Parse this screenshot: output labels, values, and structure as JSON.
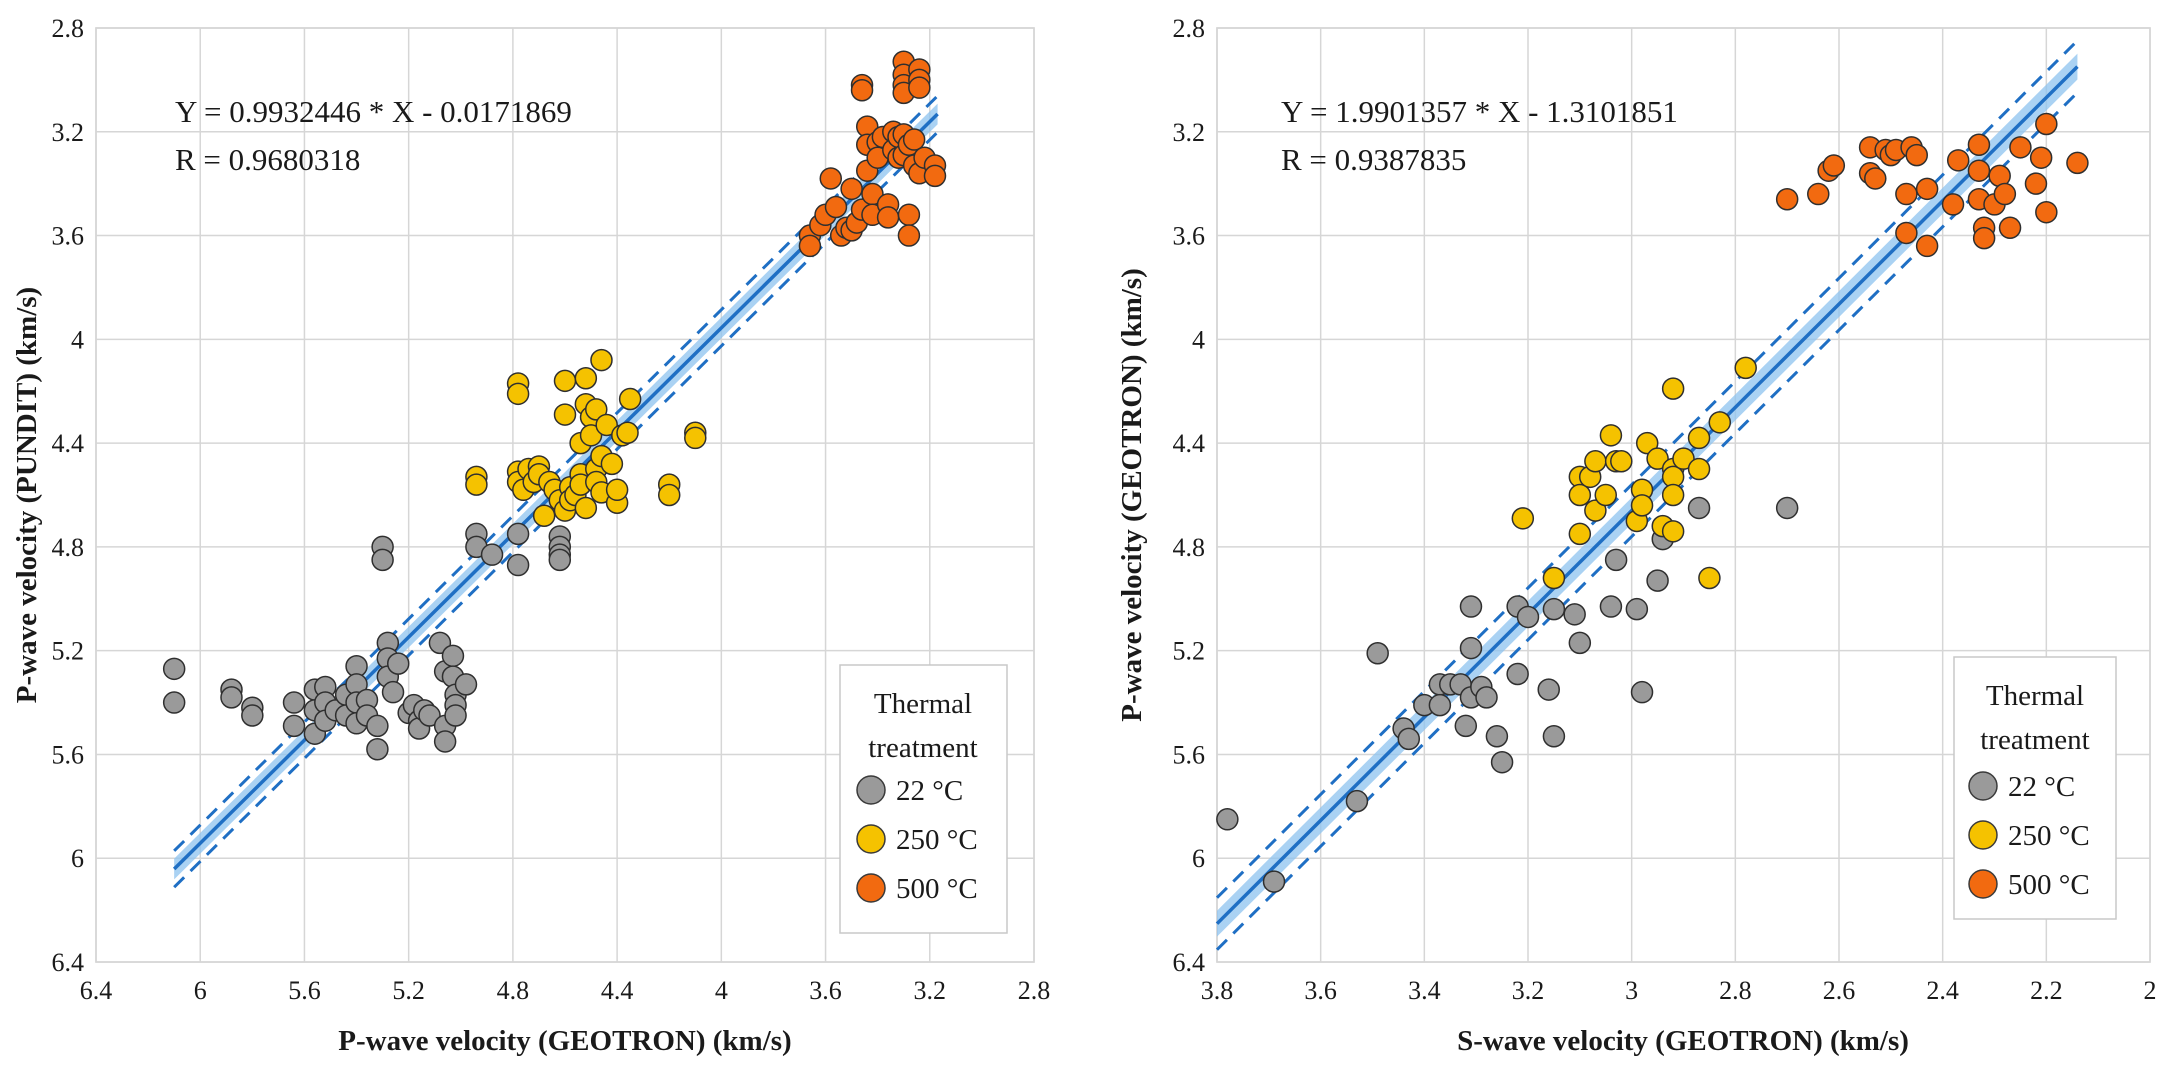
{
  "chart_data": [
    {
      "type": "scatter",
      "title": "",
      "xlabel": "P-wave velocity (GEOTRON) (km/s)",
      "ylabel": "P-wave velocity (PUNDIT) (km/s)",
      "xlim": [
        6.4,
        2.8
      ],
      "ylim": [
        2.8,
        6.4
      ],
      "x_ticks": [
        "6.4",
        "6",
        "5.6",
        "5.2",
        "4.8",
        "4.4",
        "4",
        "3.6",
        "3.2",
        "2.8"
      ],
      "y_ticks": [
        "2.8",
        "3.2",
        "3.6",
        "4",
        "4.4",
        "4.8",
        "5.2",
        "5.6",
        "6",
        "6.4"
      ],
      "equation": "Y = 0.9932446 * X - 0.0171869",
      "r_text": "R = 0.9680318",
      "fit": {
        "slope": 0.9932446,
        "intercept": -0.0171869,
        "x_range": [
          6.1,
          3.17
        ],
        "band": 0.04,
        "dash_offset": 0.07
      },
      "legend": {
        "title_lines": [
          "Thermal",
          "treatment"
        ],
        "position": "bottom-right"
      },
      "series": [
        {
          "name": "22 °C",
          "color": "#9a9a9a",
          "points": [
            [
              6.1,
              5.27
            ],
            [
              6.1,
              5.4
            ],
            [
              5.88,
              5.35
            ],
            [
              5.88,
              5.38
            ],
            [
              5.8,
              5.42
            ],
            [
              5.8,
              5.45
            ],
            [
              5.64,
              5.4
            ],
            [
              5.64,
              5.49
            ],
            [
              5.56,
              5.35
            ],
            [
              5.56,
              5.43
            ],
            [
              5.56,
              5.52
            ],
            [
              5.52,
              5.34
            ],
            [
              5.52,
              5.4
            ],
            [
              5.52,
              5.47
            ],
            [
              5.48,
              5.43
            ],
            [
              5.44,
              5.37
            ],
            [
              5.44,
              5.45
            ],
            [
              5.4,
              5.26
            ],
            [
              5.4,
              5.33
            ],
            [
              5.4,
              5.4
            ],
            [
              5.4,
              5.48
            ],
            [
              5.36,
              5.39
            ],
            [
              5.36,
              5.45
            ],
            [
              5.32,
              5.49
            ],
            [
              5.32,
              5.58
            ],
            [
              5.3,
              4.8
            ],
            [
              5.3,
              4.85
            ],
            [
              5.28,
              5.17
            ],
            [
              5.28,
              5.23
            ],
            [
              5.28,
              5.3
            ],
            [
              5.26,
              5.36
            ],
            [
              5.24,
              5.25
            ],
            [
              5.2,
              5.44
            ],
            [
              5.18,
              5.41
            ],
            [
              5.16,
              5.47
            ],
            [
              5.16,
              5.5
            ],
            [
              5.14,
              5.43
            ],
            [
              5.12,
              5.45
            ],
            [
              5.08,
              5.17
            ],
            [
              5.06,
              5.28
            ],
            [
              5.06,
              5.49
            ],
            [
              5.06,
              5.55
            ],
            [
              5.03,
              5.22
            ],
            [
              5.03,
              5.3
            ],
            [
              5.02,
              5.37
            ],
            [
              5.02,
              5.41
            ],
            [
              5.02,
              5.45
            ],
            [
              4.98,
              5.33
            ],
            [
              4.94,
              4.75
            ],
            [
              4.94,
              4.8
            ],
            [
              4.88,
              4.83
            ],
            [
              4.78,
              4.75
            ],
            [
              4.78,
              4.87
            ],
            [
              4.62,
              4.76
            ],
            [
              4.62,
              4.8
            ],
            [
              4.62,
              4.83
            ],
            [
              4.62,
              4.85
            ]
          ]
        },
        {
          "name": "250 °C",
          "color": "#f5c200",
          "points": [
            [
              4.94,
              4.53
            ],
            [
              4.94,
              4.56
            ],
            [
              4.78,
              4.17
            ],
            [
              4.78,
              4.21
            ],
            [
              4.78,
              4.51
            ],
            [
              4.78,
              4.55
            ],
            [
              4.76,
              4.58
            ],
            [
              4.74,
              4.5
            ],
            [
              4.72,
              4.55
            ],
            [
              4.7,
              4.49
            ],
            [
              4.7,
              4.52
            ],
            [
              4.68,
              4.68
            ],
            [
              4.66,
              4.55
            ],
            [
              4.64,
              4.58
            ],
            [
              4.62,
              4.62
            ],
            [
              4.6,
              4.66
            ],
            [
              4.6,
              4.16
            ],
            [
              4.6,
              4.29
            ],
            [
              4.58,
              4.57
            ],
            [
              4.58,
              4.62
            ],
            [
              4.56,
              4.6
            ],
            [
              4.54,
              4.4
            ],
            [
              4.54,
              4.52
            ],
            [
              4.54,
              4.56
            ],
            [
              4.52,
              4.15
            ],
            [
              4.52,
              4.25
            ],
            [
              4.52,
              4.65
            ],
            [
              4.5,
              4.3
            ],
            [
              4.5,
              4.37
            ],
            [
              4.48,
              4.27
            ],
            [
              4.48,
              4.5
            ],
            [
              4.48,
              4.55
            ],
            [
              4.46,
              4.08
            ],
            [
              4.46,
              4.45
            ],
            [
              4.46,
              4.59
            ],
            [
              4.44,
              4.33
            ],
            [
              4.42,
              4.48
            ],
            [
              4.4,
              4.63
            ],
            [
              4.4,
              4.58
            ],
            [
              4.38,
              4.37
            ],
            [
              4.36,
              4.36
            ],
            [
              4.35,
              4.23
            ],
            [
              4.2,
              4.56
            ],
            [
              4.2,
              4.6
            ],
            [
              4.1,
              4.36
            ],
            [
              4.1,
              4.38
            ]
          ]
        },
        {
          "name": "500 °C",
          "color": "#f26a10",
          "points": [
            [
              3.66,
              3.6
            ],
            [
              3.66,
              3.64
            ],
            [
              3.62,
              3.56
            ],
            [
              3.6,
              3.52
            ],
            [
              3.58,
              3.38
            ],
            [
              3.56,
              3.49
            ],
            [
              3.54,
              3.6
            ],
            [
              3.52,
              3.57
            ],
            [
              3.5,
              3.58
            ],
            [
              3.5,
              3.42
            ],
            [
              3.48,
              3.55
            ],
            [
              3.46,
              3.02
            ],
            [
              3.46,
              3.04
            ],
            [
              3.46,
              3.5
            ],
            [
              3.44,
              3.18
            ],
            [
              3.44,
              3.25
            ],
            [
              3.44,
              3.35
            ],
            [
              3.42,
              3.44
            ],
            [
              3.42,
              3.52
            ],
            [
              3.4,
              3.24
            ],
            [
              3.4,
              3.3
            ],
            [
              3.38,
              3.22
            ],
            [
              3.36,
              3.48
            ],
            [
              3.36,
              3.53
            ],
            [
              3.34,
              3.2
            ],
            [
              3.34,
              3.27
            ],
            [
              3.32,
              3.22
            ],
            [
              3.32,
              3.3
            ],
            [
              3.3,
              2.93
            ],
            [
              3.3,
              2.98
            ],
            [
              3.3,
              3.02
            ],
            [
              3.3,
              3.05
            ],
            [
              3.3,
              3.21
            ],
            [
              3.3,
              3.29
            ],
            [
              3.28,
              3.25
            ],
            [
              3.28,
              3.52
            ],
            [
              3.28,
              3.6
            ],
            [
              3.26,
              3.23
            ],
            [
              3.26,
              3.33
            ],
            [
              3.24,
              2.96
            ],
            [
              3.24,
              3.0
            ],
            [
              3.24,
              3.03
            ],
            [
              3.24,
              3.36
            ],
            [
              3.22,
              3.3
            ],
            [
              3.18,
              3.33
            ],
            [
              3.18,
              3.37
            ]
          ]
        }
      ]
    },
    {
      "type": "scatter",
      "title": "",
      "xlabel": "S-wave velocity (GEOTRON) (km/s)",
      "ylabel": "P-wave velocity (GEOTRON) (km/s)",
      "xlim": [
        3.8,
        2.0
      ],
      "ylim": [
        2.8,
        6.4
      ],
      "x_ticks": [
        "3.8",
        "3.6",
        "3.4",
        "3.2",
        "3",
        "2.8",
        "2.6",
        "2.4",
        "2.2",
        "2"
      ],
      "y_ticks": [
        "2.8",
        "3.2",
        "3.6",
        "4",
        "4.4",
        "4.8",
        "5.2",
        "5.6",
        "6",
        "6.4"
      ],
      "equation": "Y = 1.9901357 * X - 1.3101851",
      "r_text": "R = 0.9387835",
      "fit": {
        "slope": 1.9901357,
        "intercept": -1.3101851,
        "x_range": [
          3.8,
          2.14
        ],
        "band": 0.05,
        "dash_offset": 0.1
      },
      "legend": {
        "title_lines": [
          "Thermal",
          "treatment"
        ],
        "position": "bottom-right"
      },
      "series": [
        {
          "name": "22 °C",
          "color": "#9a9a9a",
          "points": [
            [
              3.78,
              5.85
            ],
            [
              3.69,
              6.09
            ],
            [
              3.53,
              5.78
            ],
            [
              3.49,
              5.21
            ],
            [
              3.44,
              5.5
            ],
            [
              3.43,
              5.54
            ],
            [
              3.4,
              5.41
            ],
            [
              3.37,
              5.33
            ],
            [
              3.37,
              5.41
            ],
            [
              3.35,
              5.33
            ],
            [
              3.33,
              5.33
            ],
            [
              3.32,
              5.49
            ],
            [
              3.31,
              5.19
            ],
            [
              3.31,
              5.38
            ],
            [
              3.31,
              5.03
            ],
            [
              3.29,
              5.34
            ],
            [
              3.28,
              5.38
            ],
            [
              3.26,
              5.53
            ],
            [
              3.25,
              5.63
            ],
            [
              3.22,
              5.29
            ],
            [
              3.22,
              5.03
            ],
            [
              3.2,
              5.07
            ],
            [
              3.16,
              5.35
            ],
            [
              3.15,
              5.04
            ],
            [
              3.15,
              5.53
            ],
            [
              3.11,
              5.06
            ],
            [
              3.1,
              5.17
            ],
            [
              3.04,
              5.03
            ],
            [
              3.03,
              4.85
            ],
            [
              2.99,
              5.04
            ],
            [
              2.98,
              5.36
            ],
            [
              2.95,
              4.93
            ],
            [
              2.94,
              4.77
            ],
            [
              2.87,
              4.65
            ],
            [
              2.7,
              4.65
            ]
          ]
        },
        {
          "name": "250 °C",
          "color": "#f5c200",
          "points": [
            [
              3.21,
              4.69
            ],
            [
              3.15,
              4.92
            ],
            [
              3.1,
              4.53
            ],
            [
              3.1,
              4.6
            ],
            [
              3.1,
              4.75
            ],
            [
              3.08,
              4.53
            ],
            [
              3.07,
              4.47
            ],
            [
              3.07,
              4.66
            ],
            [
              3.05,
              4.6
            ],
            [
              3.04,
              4.37
            ],
            [
              3.03,
              4.47
            ],
            [
              3.02,
              4.47
            ],
            [
              2.99,
              4.7
            ],
            [
              2.98,
              4.58
            ],
            [
              2.98,
              4.64
            ],
            [
              2.97,
              4.4
            ],
            [
              2.95,
              4.46
            ],
            [
              2.94,
              4.72
            ],
            [
              2.92,
              4.19
            ],
            [
              2.92,
              4.5
            ],
            [
              2.92,
              4.53
            ],
            [
              2.92,
              4.6
            ],
            [
              2.92,
              4.74
            ],
            [
              2.9,
              4.46
            ],
            [
              2.87,
              4.5
            ],
            [
              2.87,
              4.38
            ],
            [
              2.85,
              4.92
            ],
            [
              2.83,
              4.32
            ],
            [
              2.78,
              4.11
            ]
          ]
        },
        {
          "name": "500 °C",
          "color": "#f26a10",
          "points": [
            [
              2.7,
              3.46
            ],
            [
              2.64,
              3.44
            ],
            [
              2.62,
              3.35
            ],
            [
              2.61,
              3.33
            ],
            [
              2.54,
              3.26
            ],
            [
              2.54,
              3.36
            ],
            [
              2.53,
              3.38
            ],
            [
              2.51,
              3.27
            ],
            [
              2.5,
              3.29
            ],
            [
              2.49,
              3.27
            ],
            [
              2.47,
              3.59
            ],
            [
              2.47,
              3.44
            ],
            [
              2.46,
              3.26
            ],
            [
              2.45,
              3.29
            ],
            [
              2.43,
              3.42
            ],
            [
              2.43,
              3.64
            ],
            [
              2.38,
              3.48
            ],
            [
              2.37,
              3.31
            ],
            [
              2.33,
              3.25
            ],
            [
              2.33,
              3.35
            ],
            [
              2.33,
              3.46
            ],
            [
              2.32,
              3.57
            ],
            [
              2.32,
              3.61
            ],
            [
              2.3,
              3.48
            ],
            [
              2.29,
              3.37
            ],
            [
              2.28,
              3.44
            ],
            [
              2.27,
              3.57
            ],
            [
              2.25,
              3.26
            ],
            [
              2.22,
              3.4
            ],
            [
              2.21,
              3.3
            ],
            [
              2.2,
              3.17
            ],
            [
              2.2,
              3.51
            ],
            [
              2.14,
              3.32
            ]
          ]
        }
      ]
    }
  ]
}
